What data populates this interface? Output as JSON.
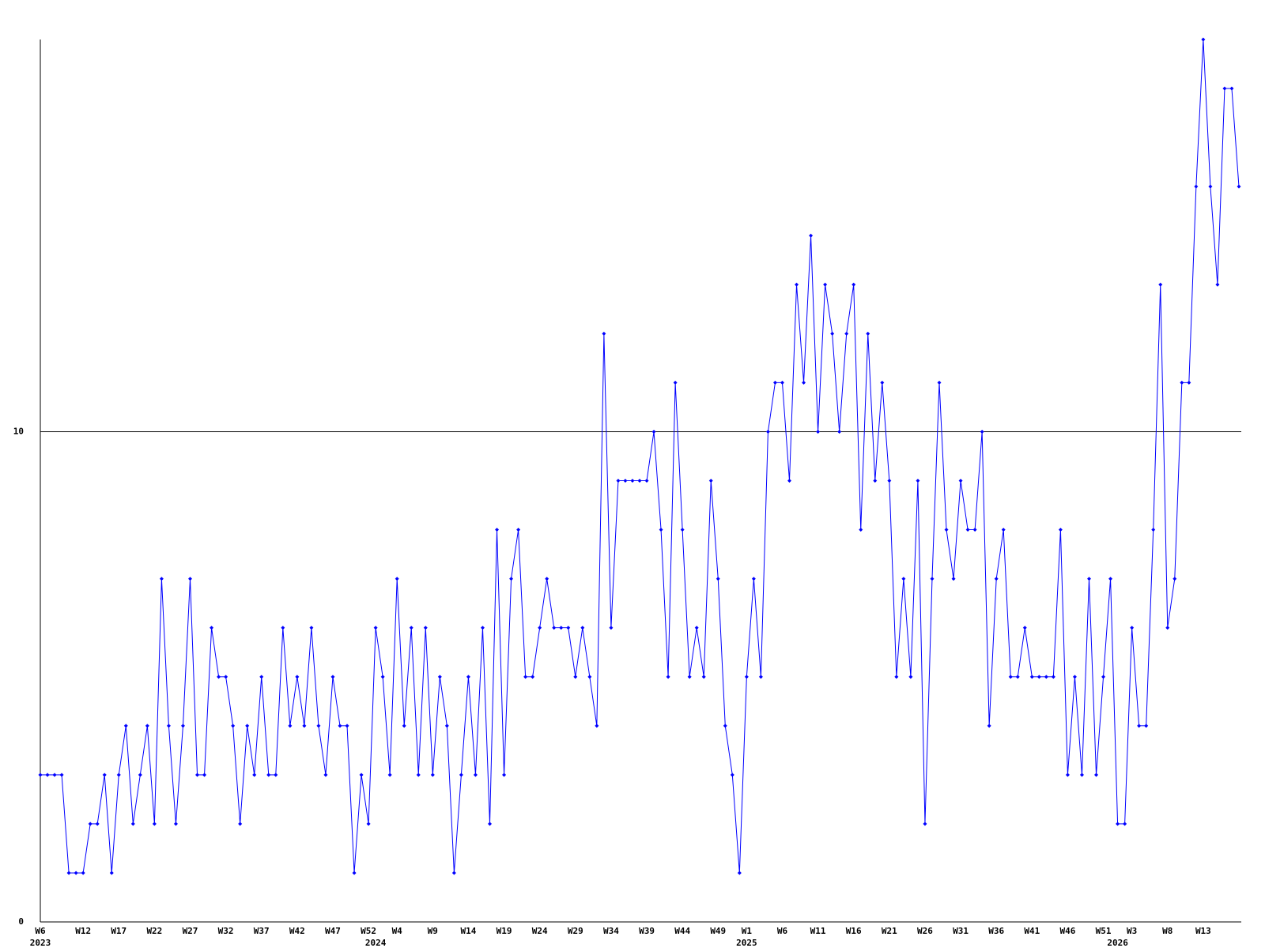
{
  "chart_data": {
    "type": "line",
    "categories": [
      "W6",
      null,
      null,
      null,
      null,
      null,
      "W12",
      null,
      null,
      null,
      null,
      "W17",
      null,
      null,
      null,
      null,
      "W22",
      null,
      null,
      null,
      null,
      "W27",
      null,
      null,
      null,
      null,
      "W32",
      null,
      null,
      null,
      null,
      "W37",
      null,
      null,
      null,
      null,
      "W42",
      null,
      null,
      null,
      null,
      "W47",
      null,
      null,
      null,
      null,
      "W52",
      null,
      null,
      null,
      "W4",
      null,
      null,
      null,
      null,
      "W9",
      null,
      null,
      null,
      null,
      "W14",
      null,
      null,
      null,
      null,
      "W19",
      null,
      null,
      null,
      null,
      "W24",
      null,
      null,
      null,
      null,
      "W29",
      null,
      null,
      null,
      null,
      "W34",
      null,
      null,
      null,
      null,
      "W39",
      null,
      null,
      null,
      null,
      "W44",
      null,
      null,
      null,
      null,
      "W49",
      null,
      null,
      null,
      "W1",
      null,
      null,
      null,
      null,
      "W6",
      null,
      null,
      null,
      null,
      "W11",
      null,
      null,
      null,
      null,
      "W16",
      null,
      null,
      null,
      null,
      "W21",
      null,
      null,
      null,
      null,
      "W26",
      null,
      null,
      null,
      null,
      "W31",
      null,
      null,
      null,
      null,
      "W36",
      null,
      null,
      null,
      null,
      "W41",
      null,
      null,
      null,
      null,
      "W46",
      null,
      null,
      null,
      null,
      "W51",
      null,
      null,
      null,
      "W3",
      null,
      null,
      null,
      null,
      "W8",
      null,
      null,
      null,
      null,
      "W13",
      null,
      null,
      null,
      null,
      null
    ],
    "years": [
      "2023",
      null,
      null,
      null,
      null,
      null,
      null,
      null,
      null,
      null,
      null,
      null,
      null,
      null,
      null,
      null,
      null,
      null,
      null,
      null,
      null,
      null,
      null,
      null,
      null,
      null,
      null,
      null,
      null,
      null,
      null,
      null,
      null,
      null,
      null,
      null,
      null,
      null,
      null,
      null,
      null,
      null,
      null,
      null,
      null,
      null,
      null,
      "2024",
      null,
      null,
      null,
      null,
      null,
      null,
      null,
      null,
      null,
      null,
      null,
      null,
      null,
      null,
      null,
      null,
      null,
      null,
      null,
      null,
      null,
      null,
      null,
      null,
      null,
      null,
      null,
      null,
      null,
      null,
      null,
      null,
      null,
      null,
      null,
      null,
      null,
      null,
      null,
      null,
      null,
      null,
      null,
      null,
      null,
      null,
      null,
      null,
      null,
      null,
      null,
      "2025",
      null,
      null,
      null,
      null,
      null,
      null,
      null,
      null,
      null,
      null,
      null,
      null,
      null,
      null,
      null,
      null,
      null,
      null,
      null,
      null,
      null,
      null,
      null,
      null,
      null,
      null,
      null,
      null,
      null,
      null,
      null,
      null,
      null,
      null,
      null,
      null,
      null,
      null,
      null,
      null,
      null,
      null,
      null,
      null,
      null,
      null,
      null,
      null,
      null,
      null,
      null,
      "2026",
      null,
      null,
      null,
      null,
      null,
      null,
      null,
      null,
      null,
      null,
      null,
      null,
      null,
      null,
      null,
      null,
      null
    ],
    "values": [
      3,
      3,
      3,
      3,
      1,
      1,
      1,
      2,
      2,
      3,
      1,
      3,
      4,
      2,
      3,
      4,
      2,
      7,
      4,
      2,
      4,
      7,
      3,
      3,
      6,
      5,
      5,
      4,
      2,
      4,
      3,
      5,
      3,
      3,
      6,
      4,
      5,
      4,
      6,
      4,
      3,
      5,
      4,
      4,
      1,
      3,
      2,
      6,
      5,
      3,
      7,
      4,
      6,
      3,
      6,
      3,
      5,
      4,
      1,
      3,
      5,
      3,
      6,
      2,
      8,
      3,
      7,
      8,
      5,
      5,
      6,
      7,
      6,
      6,
      6,
      5,
      6,
      5,
      4,
      12,
      6,
      9,
      9,
      9,
      9,
      9,
      10,
      8,
      5,
      11,
      8,
      5,
      6,
      5,
      9,
      7,
      4,
      3,
      1,
      5,
      7,
      5,
      10,
      11,
      11,
      9,
      13,
      11,
      14,
      10,
      13,
      12,
      10,
      12,
      13,
      8,
      12,
      9,
      11,
      9,
      5,
      7,
      5,
      9,
      2,
      7,
      11,
      8,
      7,
      9,
      8,
      8,
      10,
      4,
      7,
      8,
      5,
      5,
      6,
      5,
      5,
      5,
      5,
      8,
      3,
      5,
      3,
      7,
      3,
      5,
      7,
      2,
      2,
      6,
      4,
      4,
      8,
      13,
      6,
      7,
      11,
      11,
      15,
      18,
      15,
      13,
      17,
      17,
      15
    ],
    "color": "#0000ff",
    "ylim": [
      0,
      18
    ],
    "yticks": [
      0,
      10
    ],
    "grid": true
  }
}
